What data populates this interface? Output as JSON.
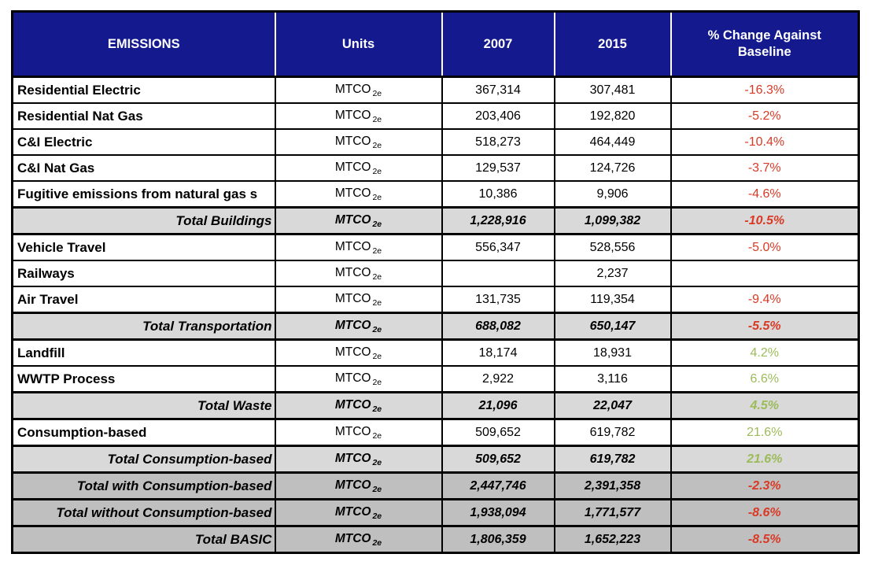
{
  "colors": {
    "header_bg": "#141a8e",
    "header_text": "#ffffff",
    "red": "#d93a26",
    "green": "#9cbb59",
    "subtotal_bg": "#d9d9d9",
    "grand_bg": "#bfbfbf",
    "border": "#000000"
  },
  "table": {
    "columns": [
      {
        "label": "EMISSIONS"
      },
      {
        "label": "Units"
      },
      {
        "label": "2007"
      },
      {
        "label": "2015"
      },
      {
        "label": "% Change Against Baseline"
      }
    ],
    "unit": {
      "base": "MTCO",
      "sub": "2e"
    },
    "rows": [
      {
        "label": "Residential Electric",
        "type": "normal",
        "y2007": "367,314",
        "y2015": "307,481",
        "change": "-16.3%",
        "trend": "negative"
      },
      {
        "label": "Residential Nat Gas",
        "type": "normal",
        "y2007": "203,406",
        "y2015": "192,820",
        "change": "-5.2%",
        "trend": "negative"
      },
      {
        "label": "C&I Electric",
        "type": "normal",
        "y2007": "518,273",
        "y2015": "464,449",
        "change": "-10.4%",
        "trend": "negative"
      },
      {
        "label": "C&I Nat Gas",
        "type": "normal",
        "y2007": "129,537",
        "y2015": "124,726",
        "change": "-3.7%",
        "trend": "negative"
      },
      {
        "label": "Fugitive emissions from natural gas s",
        "type": "normal",
        "y2007": "10,386",
        "y2015": "9,906",
        "change": "-4.6%",
        "trend": "negative"
      },
      {
        "label": "Total Buildings",
        "type": "subtotal",
        "y2007": "1,228,916",
        "y2015": "1,099,382",
        "change": "-10.5%",
        "trend": "negative"
      },
      {
        "label": "Vehicle Travel",
        "type": "normal",
        "y2007": "556,347",
        "y2015": "528,556",
        "change": "-5.0%",
        "trend": "negative"
      },
      {
        "label": "Railways",
        "type": "normal",
        "y2007": "",
        "y2015": "2,237",
        "change": "",
        "trend": ""
      },
      {
        "label": "Air Travel",
        "type": "normal",
        "y2007": "131,735",
        "y2015": "119,354",
        "change": "-9.4%",
        "trend": "negative"
      },
      {
        "label": "Total Transportation",
        "type": "subtotal",
        "y2007": "688,082",
        "y2015": "650,147",
        "change": "-5.5%",
        "trend": "negative"
      },
      {
        "label": "Landfill",
        "type": "normal",
        "y2007": "18,174",
        "y2015": "18,931",
        "change": "4.2%",
        "trend": "positive"
      },
      {
        "label": "WWTP Process",
        "type": "normal",
        "y2007": "2,922",
        "y2015": "3,116",
        "change": "6.6%",
        "trend": "positive"
      },
      {
        "label": "Total Waste",
        "type": "subtotal",
        "y2007": "21,096",
        "y2015": "22,047",
        "change": "4.5%",
        "trend": "positive"
      },
      {
        "label": "Consumption-based",
        "type": "normal",
        "y2007": "509,652",
        "y2015": "619,782",
        "change": "21.6%",
        "trend": "positive"
      },
      {
        "label": "Total Consumption-based",
        "type": "subtotal",
        "y2007": "509,652",
        "y2015": "619,782",
        "change": "21.6%",
        "trend": "positive"
      },
      {
        "label": "Total with Consumption-based",
        "type": "grand",
        "y2007": "2,447,746",
        "y2015": "2,391,358",
        "change": "-2.3%",
        "trend": "negative"
      },
      {
        "label": "Total without Consumption-based",
        "type": "grand",
        "y2007": "1,938,094",
        "y2015": "1,771,577",
        "change": "-8.6%",
        "trend": "negative"
      },
      {
        "label": "Total BASIC",
        "type": "grand",
        "y2007": "1,806,359",
        "y2015": "1,652,223",
        "change": "-8.5%",
        "trend": "negative"
      }
    ]
  }
}
